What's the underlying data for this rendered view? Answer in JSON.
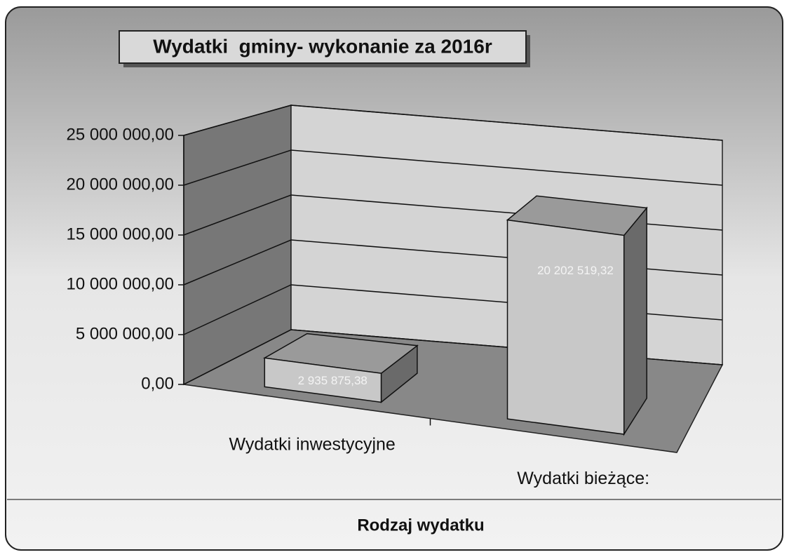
{
  "chart_data": {
    "type": "bar3d",
    "title": "Wydatki  gminy- wykonanie za 2016r",
    "x_label": "Rodzaj wydatku",
    "categories": [
      "Wydatki inwestycyjne",
      "Wydatki bieżące:"
    ],
    "values": [
      2935875.38,
      20202519.32
    ],
    "value_labels": [
      "2 935 875,38",
      "20 202 519,32"
    ],
    "color": "#c8c8c8",
    "ylim": [
      0,
      25000000
    ],
    "yticks": [
      {
        "value": 0,
        "label": "0,00"
      },
      {
        "value": 5000000,
        "label": "5 000 000,00"
      },
      {
        "value": 10000000,
        "label": "10 000 000,00"
      },
      {
        "value": 15000000,
        "label": "15 000 000,00"
      },
      {
        "value": 20000000,
        "label": "20 000 000,00"
      },
      {
        "value": 25000000,
        "label": "25 000 000,00"
      }
    ],
    "grid": true
  }
}
